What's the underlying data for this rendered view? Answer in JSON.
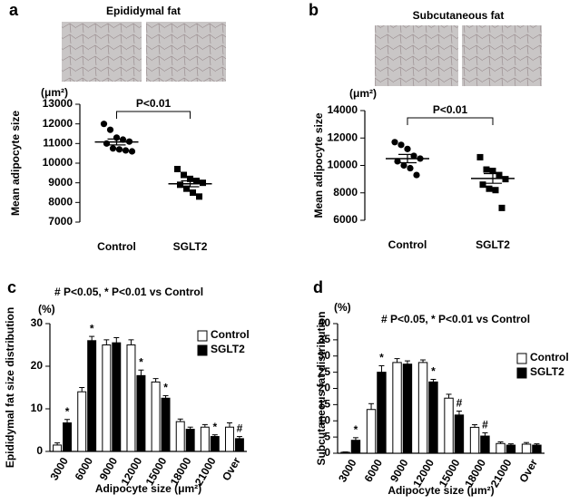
{
  "chart_data": [
    {
      "type": "dot",
      "panel_label": "a",
      "title": "Epididymal fat",
      "y_unit": "(μm²)",
      "ylabel": "Mean adipocyte size",
      "categories": [
        "Control",
        "SGLT2"
      ],
      "values": [
        [
          12000,
          11700,
          11300,
          11200,
          11100,
          11000,
          10750,
          10700,
          10650,
          10600
        ],
        [
          9700,
          9400,
          9200,
          9100,
          9000,
          8900,
          8700,
          8500,
          8300
        ]
      ],
      "means": [
        11080,
        8950
      ],
      "sems": [
        150,
        150
      ],
      "markers": [
        "circle",
        "square"
      ],
      "color": "#000000",
      "annotation": "P<0.01",
      "ylim": [
        7000,
        13000
      ],
      "yticks": [
        7000,
        8000,
        9000,
        10000,
        11000,
        12000,
        13000
      ]
    },
    {
      "type": "dot",
      "panel_label": "b",
      "title": "Subcutaneous fat",
      "y_unit": "(μm²)",
      "ylabel": "Mean adipocyte size",
      "categories": [
        "Control",
        "SGLT2"
      ],
      "values": [
        [
          11700,
          11500,
          11200,
          10700,
          10500,
          10300,
          10000,
          9800,
          9300
        ],
        [
          10600,
          9700,
          9600,
          9300,
          9000,
          8600,
          8300,
          8200,
          6900
        ]
      ],
      "means": [
        10500,
        9050
      ],
      "sems": [
        300,
        350
      ],
      "markers": [
        "circle",
        "square"
      ],
      "color": "#000000",
      "annotation": "P<0.01",
      "ylim": [
        6000,
        14000
      ],
      "yticks": [
        6000,
        8000,
        10000,
        12000,
        14000
      ]
    },
    {
      "type": "bar",
      "panel_label": "c",
      "note": "# P<0.05, * P<0.01 vs Control",
      "y_unit": "(%)",
      "ylabel": "Epididymal fat size distribution",
      "xlabel": "Adipocyte size (μm²)",
      "categories": [
        "3000",
        "6000",
        "9000",
        "12000",
        "15000",
        "18000",
        "21000",
        "Over"
      ],
      "series": [
        {
          "name": "Control",
          "color": "#ffffff",
          "values": [
            1.5,
            14,
            25,
            25,
            16.3,
            7,
            5.7,
            5.7
          ],
          "errors": [
            0.5,
            1.0,
            1.2,
            1.2,
            0.8,
            0.6,
            0.6,
            1.0
          ]
        },
        {
          "name": "SGLT2",
          "color": "#000000",
          "values": [
            6.7,
            26,
            25.5,
            17.8,
            12.5,
            5.2,
            3.5,
            3.0
          ],
          "errors": [
            0.8,
            1.0,
            1.2,
            1.3,
            0.6,
            0.5,
            0.4,
            0.5
          ]
        }
      ],
      "significance": [
        "*",
        "*",
        null,
        "*",
        "*",
        null,
        "*",
        "#"
      ],
      "ylim": [
        0,
        30
      ],
      "yticks": [
        0,
        10,
        20,
        30
      ]
    },
    {
      "type": "bar",
      "panel_label": "d",
      "note": "# P<0.05, * P<0.01 vs Control",
      "y_unit": "(%)",
      "ylabel": "Subcutaneous fat distribution",
      "xlabel": "Adipocyte size (μm²)",
      "categories": [
        "3000",
        "6000",
        "9000",
        "12000",
        "15000",
        "18000",
        "21000",
        "Over"
      ],
      "series": [
        {
          "name": "Control",
          "color": "#ffffff",
          "values": [
            0.3,
            13.5,
            28,
            28,
            17,
            8,
            3,
            2.8
          ],
          "errors": [
            0.1,
            1.8,
            1.2,
            0.8,
            1.2,
            0.8,
            0.5,
            0.5
          ]
        },
        {
          "name": "SGLT2",
          "color": "#000000",
          "values": [
            4,
            25,
            27.5,
            22,
            11.8,
            5.3,
            2.5,
            2.5
          ],
          "errors": [
            0.8,
            2.0,
            1.0,
            0.8,
            1.2,
            1.0,
            0.4,
            0.4
          ]
        }
      ],
      "significance": [
        "*",
        "*",
        null,
        "*",
        "#",
        "#",
        null,
        null
      ],
      "ylim": [
        0,
        40
      ],
      "yticks": [
        0,
        5,
        10,
        15,
        20,
        25,
        30,
        35,
        40
      ]
    }
  ]
}
